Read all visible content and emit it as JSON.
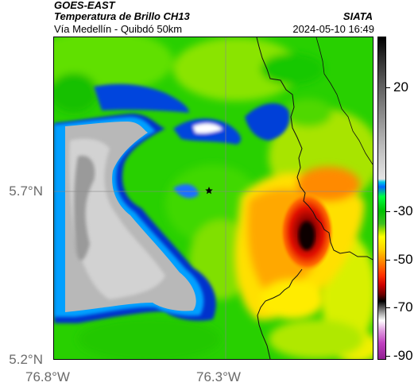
{
  "header": {
    "source": "GOES-EAST",
    "product": "Temperatura de Brillo CH13",
    "organization": "SIATA",
    "location": "Vía Medellín - Quibdó 50km",
    "datetime": "2024-05-10 16:49"
  },
  "map": {
    "lat_labels": [
      "5.7°N",
      "5.2°N"
    ],
    "lon_labels": [
      "76.8°W",
      "76.3°W"
    ],
    "marker": "star-marker",
    "gridlines": true
  },
  "colorbar": {
    "ticks": [
      "20",
      "-30",
      "-50",
      "-70",
      "-90"
    ],
    "tick_values": [
      20,
      -30,
      -50,
      -70,
      -90
    ],
    "palette": {
      "warm": "#bcbcbc",
      "cold_edge": "#0033cc",
      "green": "#22c800",
      "yellow": "#ffff00",
      "orange": "#ff9000",
      "red": "#cc0000",
      "core": "#000000",
      "magenta": "#c040c0"
    }
  }
}
